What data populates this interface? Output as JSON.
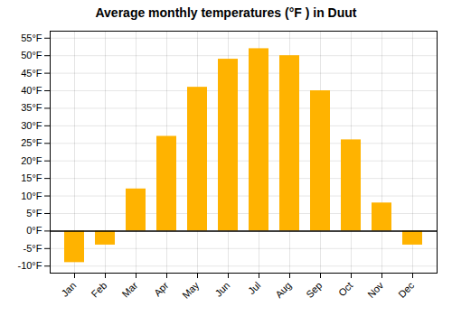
{
  "chart_data": {
    "type": "bar",
    "title": "Average monthly temperatures (°F ) in Duut",
    "categories": [
      "Jan",
      "Feb",
      "Mar",
      "Apr",
      "May",
      "Jun",
      "Jul",
      "Aug",
      "Sep",
      "Oct",
      "Nov",
      "Dec"
    ],
    "values": [
      -9,
      -4,
      12,
      27,
      41,
      49,
      52,
      50,
      40,
      26,
      8,
      -4
    ],
    "color": "#FFB300",
    "ylim": [
      -12,
      57
    ],
    "yticks": [
      {
        "value": -10,
        "label": "-10°F"
      },
      {
        "value": -5,
        "label": "-5°F"
      },
      {
        "value": 0,
        "label": "0°F"
      },
      {
        "value": 5,
        "label": "5°F"
      },
      {
        "value": 10,
        "label": "10°F"
      },
      {
        "value": 15,
        "label": "15°F"
      },
      {
        "value": 20,
        "label": "20°F"
      },
      {
        "value": 25,
        "label": "25°F"
      },
      {
        "value": 30,
        "label": "30°F"
      },
      {
        "value": 35,
        "label": "35°F"
      },
      {
        "value": 40,
        "label": "40°F"
      },
      {
        "value": 45,
        "label": "45°F"
      },
      {
        "value": 50,
        "label": "50°F"
      },
      {
        "value": 55,
        "label": "55°F"
      }
    ],
    "grid": true
  }
}
